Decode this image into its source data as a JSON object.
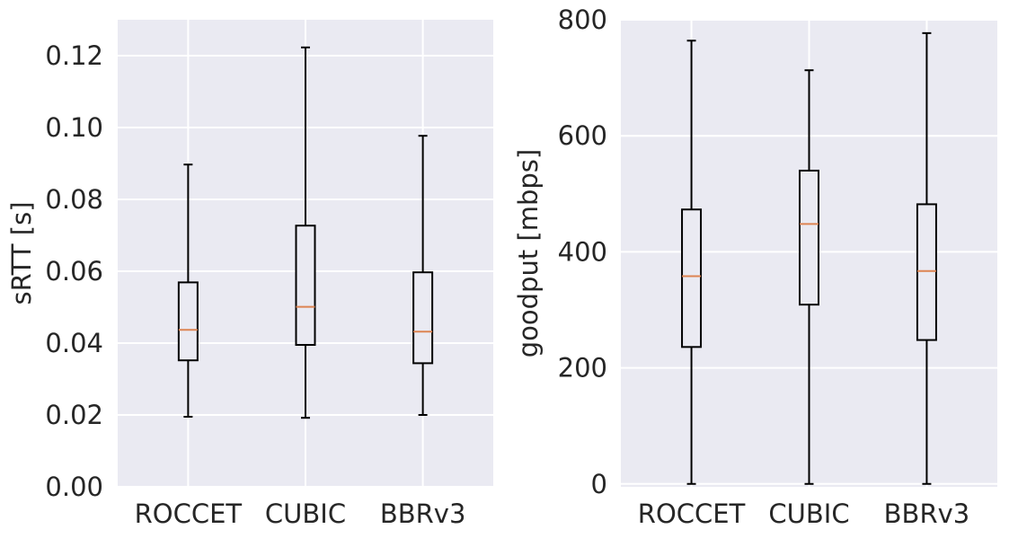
{
  "chart_data": [
    {
      "type": "box",
      "ylabel": "sRTT [s]",
      "ylim": [
        0,
        0.13
      ],
      "yticks": [
        0.0,
        0.02,
        0.04,
        0.06,
        0.08,
        0.1,
        0.12
      ],
      "ytick_labels": [
        "0.00",
        "0.02",
        "0.04",
        "0.06",
        "0.08",
        "0.10",
        "0.12"
      ],
      "categories": [
        "ROCCET",
        "CUBIC",
        "BBRv3"
      ],
      "boxes": [
        {
          "whisker_low": 0.0195,
          "q1": 0.0352,
          "median": 0.0437,
          "q3": 0.0569,
          "whisker_high": 0.0897
        },
        {
          "whisker_low": 0.0192,
          "q1": 0.0395,
          "median": 0.0501,
          "q3": 0.0727,
          "whisker_high": 0.1223
        },
        {
          "whisker_low": 0.02,
          "q1": 0.0344,
          "median": 0.0432,
          "q3": 0.0597,
          "whisker_high": 0.0977
        }
      ],
      "grid": true
    },
    {
      "type": "box",
      "ylabel": "goodput [mbps]",
      "ylim": [
        -5,
        800
      ],
      "yticks": [
        0,
        200,
        400,
        600,
        800
      ],
      "ytick_labels": [
        "0",
        "200",
        "400",
        "600",
        "800"
      ],
      "categories": [
        "ROCCET",
        "CUBIC",
        "BBRv3"
      ],
      "boxes": [
        {
          "whisker_low": 0,
          "q1": 236,
          "median": 358,
          "q3": 473,
          "whisker_high": 764
        },
        {
          "whisker_low": 0,
          "q1": 309,
          "median": 448,
          "q3": 540,
          "whisker_high": 713
        },
        {
          "whisker_low": 0,
          "q1": 248,
          "median": 367,
          "q3": 482,
          "whisker_high": 777
        }
      ],
      "grid": true
    }
  ],
  "colors": {
    "plot_background": "#eaeaf2",
    "grid": "#ffffff",
    "box_edge": "#000000",
    "box_fill": "#eaeaf2",
    "median": "#dd8452",
    "text": "#262626"
  }
}
